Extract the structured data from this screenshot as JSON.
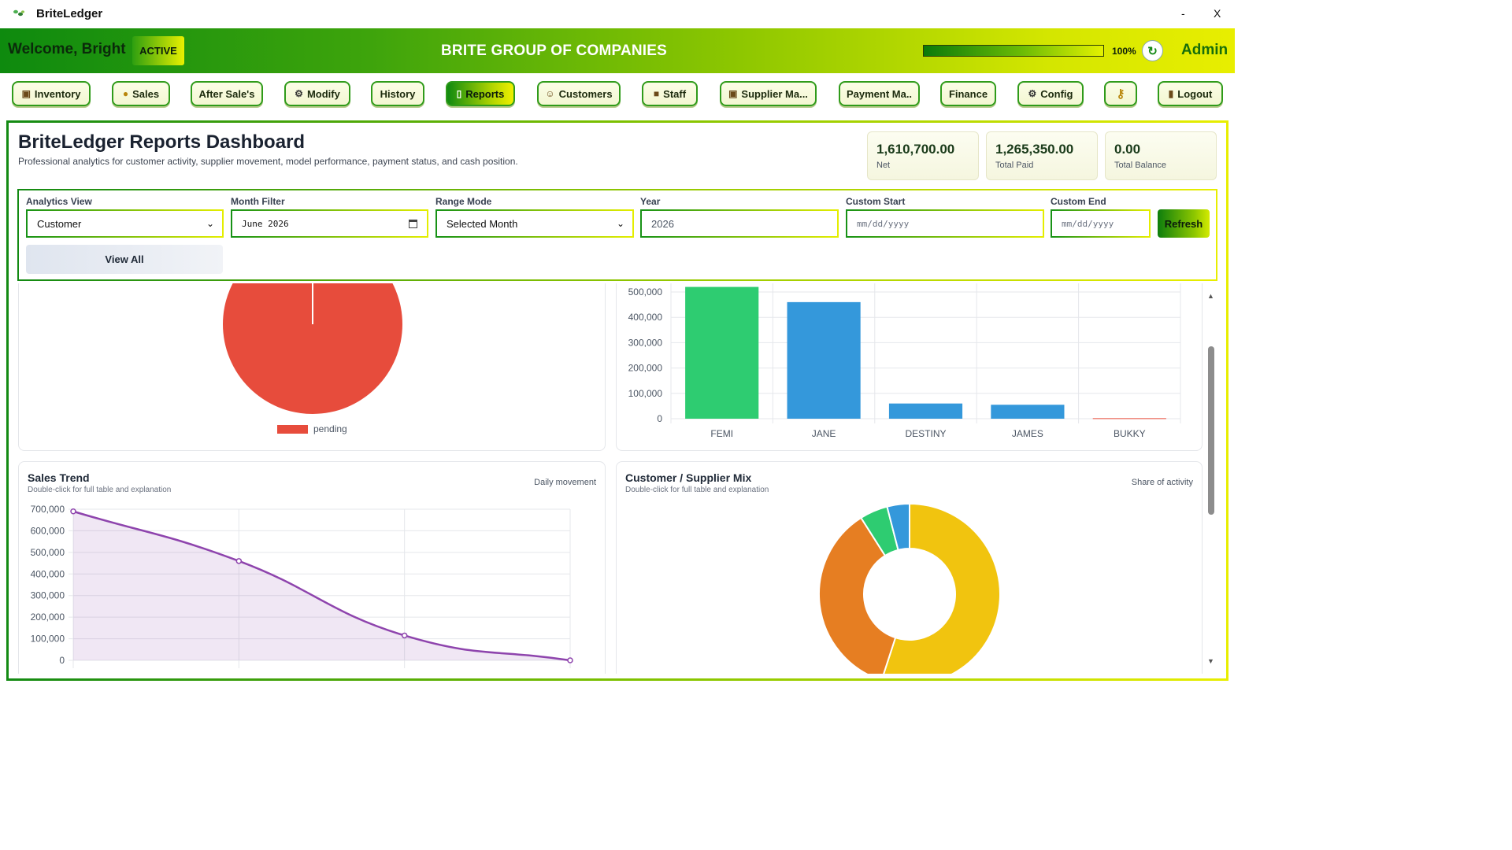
{
  "window": {
    "title": "BriteLedger",
    "minimize": "-",
    "close": "X"
  },
  "header": {
    "welcome": "Welcome, Bright",
    "status": "ACTIVE",
    "company": "BRITE GROUP OF COMPANIES",
    "progress_pct": 100,
    "progress_label": "100%",
    "refresh_glyph": "↻",
    "role": "Admin"
  },
  "nav": {
    "items": [
      {
        "label": "Inventory",
        "icon": "box-icon"
      },
      {
        "label": "Sales",
        "icon": "money-bag-icon"
      },
      {
        "label": "After Sale's",
        "icon": ""
      },
      {
        "label": "Modify",
        "icon": "gear-icon"
      },
      {
        "label": "History",
        "icon": ""
      },
      {
        "label": "Reports",
        "icon": "document-icon",
        "selected": true
      },
      {
        "label": "Customers",
        "icon": "user-icon"
      },
      {
        "label": "Staff",
        "icon": "staff-icon"
      },
      {
        "label": "Supplier Ma...",
        "icon": "box-icon"
      },
      {
        "label": "Payment Ma..",
        "icon": ""
      },
      {
        "label": "Finance",
        "icon": ""
      },
      {
        "label": "Config",
        "icon": "gear-icon"
      },
      {
        "label": "",
        "icon": "key-icon"
      },
      {
        "label": "Logout",
        "icon": "door-icon"
      }
    ]
  },
  "dashboard": {
    "title": "BriteLedger Reports Dashboard",
    "subtitle": "Professional analytics for customer activity, supplier movement, model performance, payment status, and cash position.",
    "stats": [
      {
        "value": "1,610,700.00",
        "label": "Net"
      },
      {
        "value": "1,265,350.00",
        "label": "Total Paid"
      },
      {
        "value": "0.00",
        "label": "Total Balance"
      }
    ]
  },
  "filters": {
    "analytics_view": {
      "label": "Analytics View",
      "value": "Customer"
    },
    "month_filter": {
      "label": "Month Filter",
      "value": "June 2026"
    },
    "range_mode": {
      "label": "Range Mode",
      "value": "Selected Month"
    },
    "year": {
      "label": "Year",
      "value": "2026"
    },
    "custom_start": {
      "label": "Custom Start",
      "placeholder": "mm/dd/yyyy"
    },
    "custom_end": {
      "label": "Custom End",
      "placeholder": "mm/dd/yyyy"
    },
    "refresh": "Refresh",
    "view_all": "View All"
  },
  "colors": {
    "brand_green": "#138a13",
    "brand_yellow": "#e8ee00",
    "pending_red": "#e74c3c",
    "green_bar": "#2ecc71",
    "blue_bar": "#3498db",
    "purple_line": "#8e44ad",
    "yellow_slice": "#f1c40f",
    "orange_slice": "#e67e22"
  },
  "chart_data": [
    {
      "type": "pie",
      "labels": [
        "pending"
      ],
      "values": [
        100
      ],
      "colors": [
        "#e74c3c"
      ],
      "legend": "bottom"
    },
    {
      "type": "bar",
      "categories": [
        "FEMI",
        "JANE",
        "DESTINY",
        "JAMES",
        "BUKKY"
      ],
      "values": [
        520000,
        460000,
        60000,
        55000,
        2000
      ],
      "colors": [
        "#2ecc71",
        "#3498db",
        "#3498db",
        "#3498db",
        "#e74c3c"
      ],
      "yticks": [
        "0",
        "100,000",
        "200,000",
        "300,000",
        "400,000",
        "500,000"
      ],
      "ylim": [
        0,
        500000
      ],
      "grid": true
    },
    {
      "type": "area",
      "title": "Sales Trend",
      "subtitle": "Double-click for full table and explanation",
      "right_label": "Daily movement",
      "x": [
        1,
        2,
        3,
        4
      ],
      "values": [
        690000,
        460000,
        115000,
        0
      ],
      "yticks": [
        "0",
        "100,000",
        "200,000",
        "300,000",
        "400,000",
        "500,000",
        "600,000",
        "700,000"
      ],
      "ylim": [
        0,
        700000
      ],
      "color": "#8e44ad",
      "grid": true
    },
    {
      "type": "pie",
      "title": "Customer / Supplier Mix",
      "subtitle": "Double-click for full table and explanation",
      "right_label": "Share of activity",
      "values": [
        55,
        36,
        5,
        4
      ],
      "colors": [
        "#f1c40f",
        "#e67e22",
        "#2ecc71",
        "#3498db"
      ],
      "donut": true
    }
  ]
}
